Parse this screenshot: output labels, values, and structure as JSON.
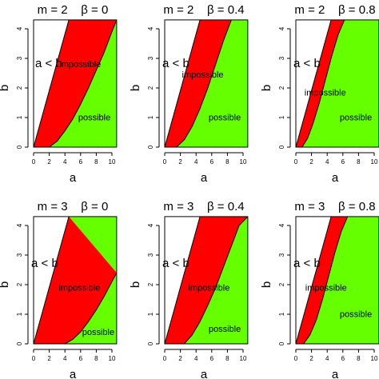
{
  "chart_data": [
    {
      "type": "area",
      "title": "m = 2    β = 0",
      "m": 2,
      "beta": 0,
      "xlabel": "a",
      "ylabel": "b",
      "xlim": [
        0,
        10
      ],
      "ylim": [
        0,
        4
      ],
      "xticks": [
        "0",
        "2",
        "4",
        "6",
        "8",
        "10"
      ],
      "yticks": [
        "0",
        "1",
        "2",
        "3",
        "4"
      ],
      "regions": [
        {
          "name": "a < b",
          "color": "#ffffff",
          "label": "a < b",
          "label_at": [
            0.2,
            2.7
          ]
        },
        {
          "name": "impossible",
          "color": "#ff0000",
          "label": "impossible",
          "label_at": [
            3.3,
            2.7
          ]
        },
        {
          "name": "possible",
          "color": "#66ff00",
          "label": "possible",
          "label_at": [
            5.7,
            0.9
          ]
        }
      ],
      "boundary_lower": {
        "x": [
          0,
          2,
          3,
          4,
          5,
          6,
          7,
          8,
          9,
          10,
          10.6
        ],
        "y": [
          0,
          0,
          0.2,
          0.55,
          0.95,
          1.45,
          2.0,
          2.6,
          3.2,
          3.9,
          4.3
        ]
      },
      "boundary_upper": {
        "x": [
          0,
          4.5
        ],
        "y": [
          0,
          4.3
        ]
      }
    },
    {
      "type": "area",
      "title": "m = 2    β = 0.4",
      "m": 2,
      "beta": 0.4,
      "xlabel": "a",
      "ylabel": "b",
      "xlim": [
        0,
        10
      ],
      "ylim": [
        0,
        4
      ],
      "xticks": [
        "0",
        "2",
        "4",
        "6",
        "8",
        "10"
      ],
      "yticks": [
        "0",
        "1",
        "2",
        "3",
        "4"
      ],
      "regions": [
        {
          "name": "a < b",
          "color": "#ffffff",
          "label": "a < b",
          "label_at": [
            -0.3,
            2.7
          ]
        },
        {
          "name": "impossible",
          "color": "#ff0000",
          "label": "impossible",
          "label_at": [
            2.2,
            2.35
          ]
        },
        {
          "name": "possible",
          "color": "#66ff00",
          "label": "possible",
          "label_at": [
            5.6,
            0.9
          ]
        }
      ],
      "boundary_lower": {
        "x": [
          0,
          1.5,
          2.5,
          3.5,
          4.5,
          5.5,
          6.5,
          7.5,
          8.5
        ],
        "y": [
          0,
          0,
          0.25,
          0.7,
          1.3,
          2.0,
          2.8,
          3.6,
          4.3
        ]
      },
      "boundary_upper": {
        "x": [
          0,
          4.5
        ],
        "y": [
          0,
          4.3
        ]
      }
    },
    {
      "type": "area",
      "title": "m = 2    β = 0.8",
      "m": 2,
      "beta": 0.8,
      "xlabel": "a",
      "ylabel": "b",
      "xlim": [
        0,
        10
      ],
      "ylim": [
        0,
        4
      ],
      "xticks": [
        "0",
        "2",
        "4",
        "6",
        "8",
        "10"
      ],
      "yticks": [
        "0",
        "1",
        "2",
        "3",
        "4"
      ],
      "regions": [
        {
          "name": "a < b",
          "color": "#ffffff",
          "label": "a < b",
          "label_at": [
            -0.3,
            2.7
          ]
        },
        {
          "name": "impossible",
          "color": "#ff0000",
          "label": "impossible",
          "label_at": [
            1.1,
            1.75
          ]
        },
        {
          "name": "possible",
          "color": "#66ff00",
          "label": "possible",
          "label_at": [
            5.6,
            0.9
          ]
        }
      ],
      "boundary_lower": {
        "x": [
          0,
          0.8,
          1.5,
          2.2,
          3.0,
          3.8,
          4.6,
          5.4,
          6.2
        ],
        "y": [
          0,
          0,
          0.3,
          0.8,
          1.5,
          2.3,
          3.1,
          3.8,
          4.3
        ]
      },
      "boundary_upper": {
        "x": [
          0,
          4.5
        ],
        "y": [
          0,
          4.3
        ]
      }
    },
    {
      "type": "area",
      "title": "m = 3    β = 0",
      "m": 3,
      "beta": 0,
      "xlabel": "a",
      "ylabel": "b",
      "xlim": [
        0,
        10
      ],
      "ylim": [
        0,
        4
      ],
      "xticks": [
        "0",
        "2",
        "4",
        "6",
        "8",
        "10"
      ],
      "yticks": [
        "0",
        "1",
        "2",
        "3",
        "4"
      ],
      "regions": [
        {
          "name": "a < b",
          "color": "#ffffff",
          "label": "a < b",
          "label_at": [
            -0.3,
            2.6
          ]
        },
        {
          "name": "impossible",
          "color": "#ff0000",
          "label": "impossible",
          "label_at": [
            3.2,
            1.8
          ]
        },
        {
          "name": "possible",
          "color": "#66ff00",
          "label": "possible",
          "label_at": [
            6.2,
            0.3
          ]
        }
      ],
      "boundary_lower": {
        "x": [
          0,
          4,
          5,
          6,
          7,
          8,
          9,
          10,
          10.6
        ],
        "y": [
          0,
          0,
          0.15,
          0.4,
          0.75,
          1.15,
          1.6,
          2.1,
          2.4
        ]
      },
      "boundary_upper": {
        "x": [
          0,
          4.5
        ],
        "y": [
          0,
          4.3
        ]
      }
    },
    {
      "type": "area",
      "title": "m = 3    β = 0.4",
      "m": 3,
      "beta": 0.4,
      "xlabel": "a",
      "ylabel": "b",
      "xlim": [
        0,
        10
      ],
      "ylim": [
        0,
        4
      ],
      "xticks": [
        "0",
        "2",
        "4",
        "6",
        "8",
        "10"
      ],
      "yticks": [
        "0",
        "1",
        "2",
        "3",
        "4"
      ],
      "regions": [
        {
          "name": "a < b",
          "color": "#ffffff",
          "label": "a < b",
          "label_at": [
            -0.3,
            2.6
          ]
        },
        {
          "name": "impossible",
          "color": "#ff0000",
          "label": "impossible",
          "label_at": [
            3.0,
            1.8
          ]
        },
        {
          "name": "possible",
          "color": "#66ff00",
          "label": "possible",
          "label_at": [
            5.6,
            0.4
          ]
        }
      ],
      "boundary_lower": {
        "x": [
          0,
          2.5,
          3.5,
          4.5,
          5.5,
          6.5,
          7.5,
          8.5,
          9.5,
          10.6
        ],
        "y": [
          0,
          0,
          0.3,
          0.75,
          1.3,
          1.9,
          2.6,
          3.3,
          4.0,
          4.3
        ]
      },
      "boundary_upper": {
        "x": [
          0,
          4.5
        ],
        "y": [
          0,
          4.3
        ]
      }
    },
    {
      "type": "area",
      "title": "m = 3    β = 0.8",
      "m": 3,
      "beta": 0.8,
      "xlabel": "a",
      "ylabel": "b",
      "xlim": [
        0,
        10
      ],
      "ylim": [
        0,
        4
      ],
      "xticks": [
        "0",
        "2",
        "4",
        "6",
        "8",
        "10"
      ],
      "yticks": [
        "0",
        "1",
        "2",
        "3",
        "4"
      ],
      "regions": [
        {
          "name": "a < b",
          "color": "#ffffff",
          "label": "a < b",
          "label_at": [
            -0.3,
            2.6
          ]
        },
        {
          "name": "impossible",
          "color": "#ff0000",
          "label": "impossible",
          "label_at": [
            1.2,
            1.8
          ]
        },
        {
          "name": "possible",
          "color": "#66ff00",
          "label": "possible",
          "label_at": [
            5.6,
            0.9
          ]
        }
      ],
      "boundary_lower": {
        "x": [
          0,
          1.0,
          1.8,
          2.6,
          3.4,
          4.2,
          5.0,
          5.8,
          6.6
        ],
        "y": [
          0,
          0,
          0.3,
          0.8,
          1.5,
          2.3,
          3.1,
          3.8,
          4.3
        ]
      },
      "boundary_upper": {
        "x": [
          0,
          4.5
        ],
        "y": [
          0,
          4.3
        ]
      }
    }
  ]
}
